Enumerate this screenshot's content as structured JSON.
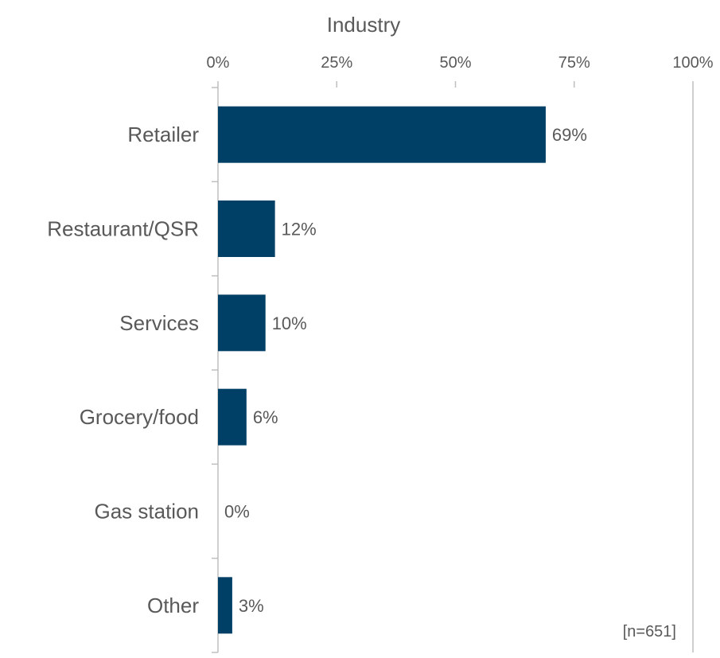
{
  "chart_data": {
    "type": "bar",
    "orientation": "horizontal",
    "title": "Industry",
    "categories": [
      "Retailer",
      "Restaurant/QSR",
      "Services",
      "Grocery/food",
      "Gas station",
      "Other"
    ],
    "values": [
      69,
      12,
      10,
      6,
      0,
      3
    ],
    "data_labels": [
      "69%",
      "12%",
      "10%",
      "6%",
      "0%",
      "3%"
    ],
    "x_ticks": [
      0,
      25,
      50,
      75,
      100
    ],
    "x_tick_labels": [
      "0%",
      "25%",
      "50%",
      "75%",
      "100%"
    ],
    "xlim": [
      0,
      100
    ],
    "x_axis_position": "top",
    "grid": false,
    "legend": "none",
    "annotation": "[n=651]",
    "bar_color": "#003f66",
    "text_color": "#595959",
    "axis_color": "#bfbfbf"
  }
}
